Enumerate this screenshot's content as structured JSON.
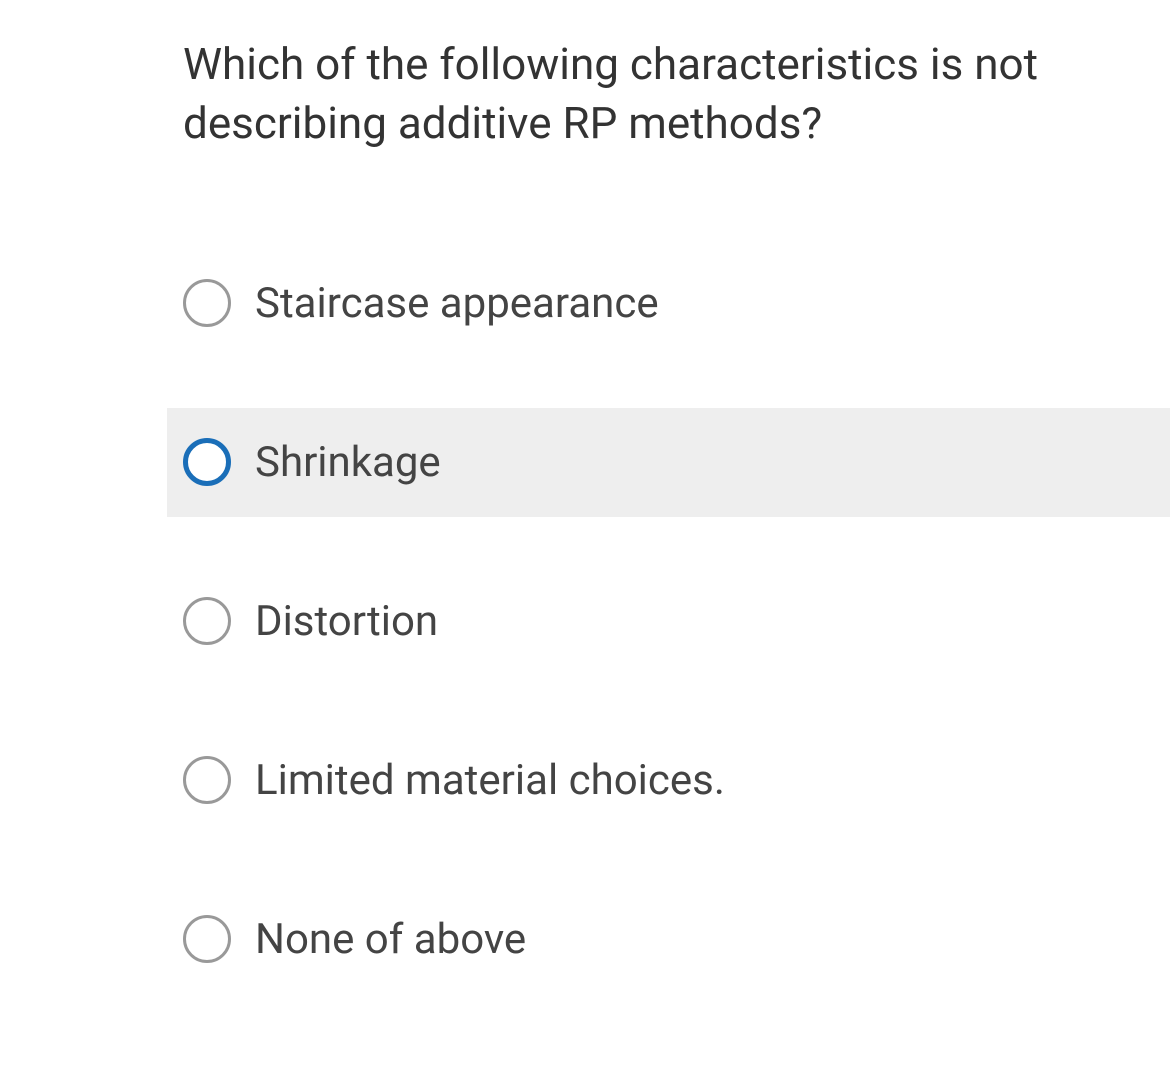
{
  "question": {
    "text": "Which of the following characteristics is not describing additive RP methods?",
    "text_color": "#333333",
    "font_size": 44
  },
  "options": [
    {
      "label": "Staircase appearance",
      "highlighted": false,
      "active": false
    },
    {
      "label": "Shrinkage",
      "highlighted": true,
      "active": true
    },
    {
      "label": "Distortion",
      "highlighted": false,
      "active": false
    },
    {
      "label": "Limited material choices.",
      "highlighted": false,
      "active": false
    },
    {
      "label": "None of above",
      "highlighted": false,
      "active": false
    }
  ],
  "colors": {
    "background": "#ffffff",
    "highlight_bg": "#eeeeee",
    "radio_border_default": "#999999",
    "radio_border_active": "#1a6eb8",
    "text_default": "#444444"
  }
}
